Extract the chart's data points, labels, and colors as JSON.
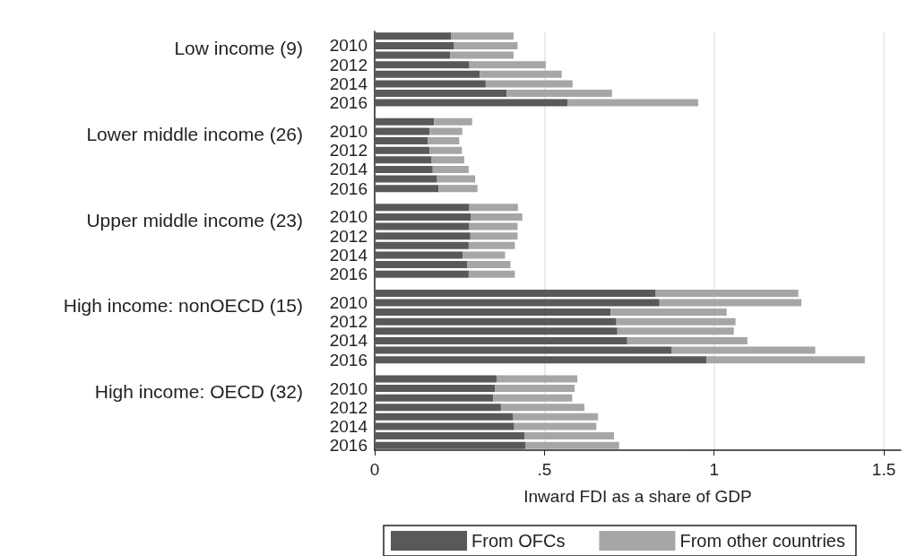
{
  "chart_data": {
    "type": "bar",
    "orientation": "horizontal",
    "stacked": true,
    "xlabel": "Inward FDI as a share of GDP",
    "categories": [
      null,
      "2010",
      null,
      "2012",
      null,
      "2014",
      null,
      "2016",
      null,
      null,
      "2010",
      null,
      "2012",
      null,
      "2014",
      null,
      "2016",
      null,
      null,
      "2010",
      null,
      "2012",
      null,
      "2014",
      null,
      "2016",
      null,
      null,
      "2010",
      null,
      "2012",
      null,
      "2014",
      null,
      "2016",
      null,
      null,
      "2010",
      null,
      "2012",
      null,
      "2014",
      null,
      "2016"
    ],
    "annotations": [
      "Low income (9)",
      "Lower middle income (26)",
      "Upper middle income (23)",
      "High income: nonOECD (15)",
      "High income: OECD (32)"
    ],
    "series": [
      {
        "name": "From OFCs",
        "color": "#595959",
        "values": [
          0.226,
          0.234,
          0.222,
          0.279,
          0.31,
          0.327,
          0.389,
          0.568,
          null,
          0.175,
          0.162,
          0.157,
          0.162,
          0.168,
          0.171,
          0.184,
          0.188,
          null,
          0.279,
          0.284,
          0.279,
          0.282,
          0.277,
          0.259,
          0.273,
          0.277,
          null,
          0.828,
          0.839,
          0.695,
          0.712,
          0.715,
          0.744,
          0.874,
          0.978,
          null,
          0.359,
          0.354,
          0.349,
          0.372,
          0.408,
          0.411,
          0.441,
          0.445
        ]
      },
      {
        "name": "From other countries",
        "color": "#a6a6a6",
        "values": [
          0.183,
          0.187,
          0.187,
          0.225,
          0.241,
          0.256,
          0.31,
          0.385,
          null,
          0.112,
          0.096,
          0.092,
          0.095,
          0.096,
          0.106,
          0.112,
          0.115,
          null,
          0.143,
          0.151,
          0.142,
          0.139,
          0.136,
          0.125,
          0.127,
          0.136,
          null,
          0.42,
          0.418,
          0.342,
          0.351,
          0.343,
          0.354,
          0.424,
          0.466,
          null,
          0.238,
          0.235,
          0.233,
          0.246,
          0.25,
          0.242,
          0.264,
          0.275
        ]
      }
    ],
    "xlim": [
      0,
      1.55
    ],
    "xticks": [
      0,
      {
        "value": 0.5,
        "label": ".5"
      },
      1,
      1.5
    ],
    "grid": "x",
    "legend": "bottom"
  }
}
